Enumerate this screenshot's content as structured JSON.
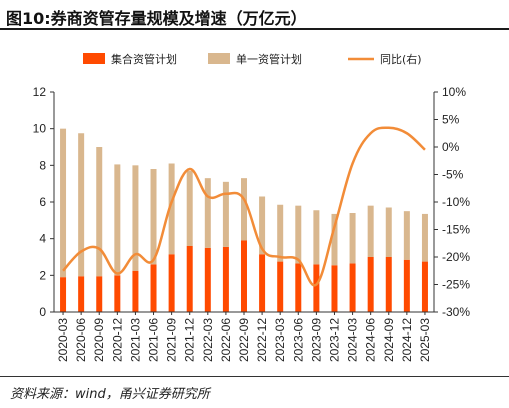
{
  "header": {
    "title": "图10:券商资管存量规模及增速（万亿元）"
  },
  "source": {
    "text": "资料来源：wind，甬兴证券研究所"
  },
  "chart_data": {
    "type": "bar",
    "categories": [
      "2020-03",
      "2020-06",
      "2020-09",
      "2020-12",
      "2021-03",
      "2021-06",
      "2021-09",
      "2021-12",
      "2022-03",
      "2022-06",
      "2022-09",
      "2022-12",
      "2023-03",
      "2023-06",
      "2023-09",
      "2023-12",
      "2024-03",
      "2024-06",
      "2024-09",
      "2024-12",
      "2025-03"
    ],
    "series": [
      {
        "name": "集合资管计划",
        "kind": "bar",
        "axis": "left",
        "color": "#ff4a00",
        "values": [
          1.9,
          1.95,
          1.95,
          2.0,
          2.25,
          2.6,
          3.15,
          3.6,
          3.5,
          3.55,
          3.9,
          3.15,
          2.75,
          2.65,
          2.6,
          2.55,
          2.65,
          3.0,
          3.0,
          2.85,
          2.75
        ]
      },
      {
        "name": "单一资管计划",
        "kind": "bar",
        "axis": "left",
        "color": "#d9b78e",
        "values": [
          8.1,
          7.8,
          7.05,
          6.05,
          5.75,
          5.2,
          4.95,
          4.1,
          3.8,
          3.55,
          3.4,
          3.15,
          3.1,
          3.15,
          2.95,
          2.8,
          2.75,
          2.8,
          2.7,
          2.65,
          2.6
        ]
      },
      {
        "name": "同比(右)",
        "kind": "line",
        "axis": "right",
        "color": "#f28c38",
        "values": [
          -22.5,
          -19.0,
          -18.5,
          -23.0,
          -19.5,
          -20.5,
          -10.0,
          -4.0,
          -9.0,
          -8.5,
          -9.5,
          -18.5,
          -20.0,
          -20.5,
          -25.0,
          -14.5,
          -3.0,
          2.5,
          3.5,
          2.5,
          -0.5
        ]
      }
    ],
    "y_left": {
      "min": 0,
      "max": 12,
      "ticks": [
        "0",
        "2",
        "4",
        "6",
        "8",
        "10",
        "12"
      ]
    },
    "y_right": {
      "min": -30,
      "max": 10,
      "ticks": [
        "-30%",
        "-25%",
        "-20%",
        "-15%",
        "-10%",
        "-5%",
        "0%",
        "5%",
        "10%"
      ]
    },
    "stacked": true,
    "grid": false,
    "legend_position": "top"
  }
}
